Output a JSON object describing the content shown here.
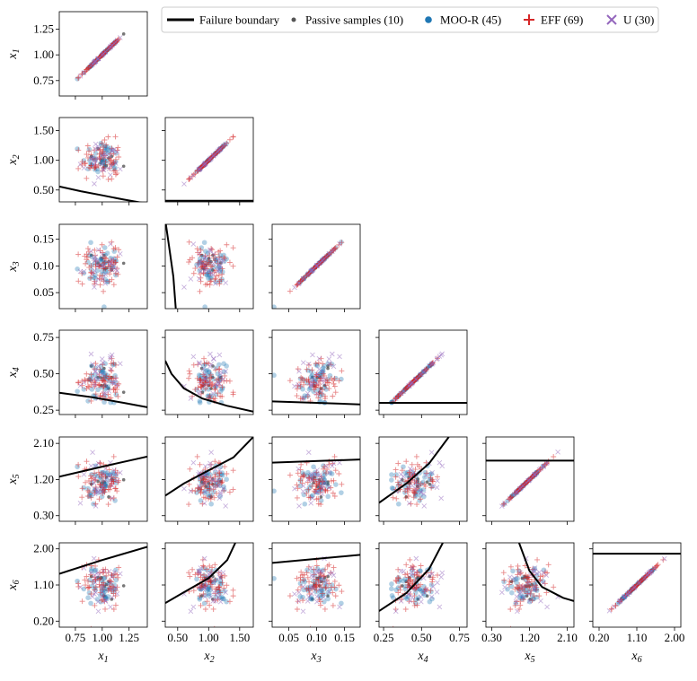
{
  "chart_data": {
    "type": "scatter",
    "layout": "pair-plot (lower triangle, diagonal = y=x)",
    "variables": [
      "x1",
      "x2",
      "x3",
      "x4",
      "x5",
      "x6"
    ],
    "axis_labels": [
      {
        "main": "x",
        "sub": "1"
      },
      {
        "main": "x",
        "sub": "2"
      },
      {
        "main": "x",
        "sub": "3"
      },
      {
        "main": "x",
        "sub": "4"
      },
      {
        "main": "x",
        "sub": "5"
      },
      {
        "main": "x",
        "sub": "6"
      }
    ],
    "ranges": [
      [
        0.6,
        1.42
      ],
      [
        0.3,
        1.72
      ],
      [
        0.02,
        0.178
      ],
      [
        0.22,
        0.8
      ],
      [
        0.16,
        2.26
      ],
      [
        0.05,
        2.15
      ]
    ],
    "x_ticks": [
      {
        "values": [
          0.75,
          1.0,
          1.25
        ],
        "labels": [
          "0.75",
          "1.00",
          "1.25"
        ]
      },
      {
        "values": [
          0.5,
          1.0,
          1.5
        ],
        "labels": [
          "0.50",
          "1.00",
          "1.50"
        ]
      },
      {
        "values": [
          0.05,
          0.1,
          0.15
        ],
        "labels": [
          "0.05",
          "0.10",
          "0.15"
        ]
      },
      {
        "values": [
          0.25,
          0.5,
          0.75
        ],
        "labels": [
          "0.25",
          "0.50",
          "0.75"
        ]
      },
      {
        "values": [
          0.3,
          1.2,
          2.1
        ],
        "labels": [
          "0.30",
          "1.20",
          "2.10"
        ]
      },
      {
        "values": [
          0.2,
          1.1,
          2.0
        ],
        "labels": [
          "0.20",
          "1.10",
          "2.00"
        ]
      }
    ],
    "y_ticks": [
      {
        "values": [
          0.75,
          1.0,
          1.25
        ],
        "labels": [
          "0.75",
          "1.00",
          "1.25"
        ]
      },
      {
        "values": [
          0.5,
          1.0,
          1.5
        ],
        "labels": [
          "0.50",
          "1.00",
          "1.50"
        ]
      },
      {
        "values": [
          0.05,
          0.1,
          0.15
        ],
        "labels": [
          "0.05",
          "0.10",
          "0.15"
        ]
      },
      {
        "values": [
          0.25,
          0.5,
          0.75
        ],
        "labels": [
          "0.25",
          "0.50",
          "0.75"
        ]
      },
      {
        "values": [
          0.3,
          1.2,
          2.1
        ],
        "labels": [
          "0.30",
          "1.20",
          "2.10"
        ]
      },
      {
        "values": [
          0.2,
          1.1,
          2.0
        ],
        "labels": [
          "0.20",
          "1.10",
          "2.00"
        ]
      }
    ],
    "centers": [
      1.0,
      1.0,
      0.1,
      0.45,
      1.15,
      1.1
    ],
    "spreads": [
      0.09,
      0.17,
      0.019,
      0.085,
      0.26,
      0.26
    ],
    "legend": [
      {
        "label": "Failure boundary",
        "marker": "line",
        "color": "#000000"
      },
      {
        "label": "Passive samples (10)",
        "marker": "dot",
        "color": "#555555"
      },
      {
        "label": "MOO-R (45)",
        "marker": "circle",
        "color": "#1f77b4"
      },
      {
        "label": "EFF (69)",
        "marker": "plus",
        "color": "#d62728"
      },
      {
        "label": "U (30)",
        "marker": "x",
        "color": "#9467bd"
      }
    ],
    "series": [
      {
        "name": "Passive samples",
        "count": 10,
        "color": "#555555",
        "marker": "dot"
      },
      {
        "name": "MOO-R",
        "count": 45,
        "color": "#1f77b4",
        "marker": "circle"
      },
      {
        "name": "EFF",
        "count": 69,
        "color": "#d62728",
        "marker": "plus"
      },
      {
        "name": "U",
        "count": 30,
        "color": "#9467bd",
        "marker": "x"
      }
    ],
    "failure_boundaries": [
      {
        "row": 2,
        "col": 1,
        "points": [
          [
            0.6,
            0.56
          ],
          [
            0.8,
            0.48
          ],
          [
            1.0,
            0.41
          ],
          [
            1.2,
            0.34
          ],
          [
            1.42,
            0.27
          ]
        ]
      },
      {
        "row": 2,
        "col": 2,
        "points": [
          [
            0.3,
            0.32
          ],
          [
            1.72,
            0.32
          ]
        ]
      },
      {
        "row": 3,
        "col": 2,
        "points": [
          [
            0.31,
            0.178
          ],
          [
            0.37,
            0.13
          ],
          [
            0.43,
            0.08
          ],
          [
            0.47,
            0.02
          ]
        ]
      },
      {
        "row": 4,
        "col": 1,
        "points": [
          [
            0.6,
            0.37
          ],
          [
            0.9,
            0.34
          ],
          [
            1.2,
            0.3
          ],
          [
            1.42,
            0.27
          ]
        ]
      },
      {
        "row": 4,
        "col": 2,
        "points": [
          [
            0.3,
            0.59
          ],
          [
            0.4,
            0.5
          ],
          [
            0.6,
            0.4
          ],
          [
            0.9,
            0.33
          ],
          [
            1.3,
            0.28
          ],
          [
            1.72,
            0.24
          ]
        ]
      },
      {
        "row": 4,
        "col": 3,
        "points": [
          [
            0.02,
            0.31
          ],
          [
            0.1,
            0.3
          ],
          [
            0.178,
            0.29
          ]
        ]
      },
      {
        "row": 4,
        "col": 4,
        "points": [
          [
            0.22,
            0.3
          ],
          [
            0.8,
            0.3
          ]
        ]
      },
      {
        "row": 5,
        "col": 1,
        "points": [
          [
            0.6,
            1.27
          ],
          [
            1.0,
            1.52
          ],
          [
            1.42,
            1.77
          ]
        ]
      },
      {
        "row": 5,
        "col": 2,
        "points": [
          [
            0.3,
            0.8
          ],
          [
            0.6,
            1.1
          ],
          [
            1.0,
            1.43
          ],
          [
            1.4,
            1.75
          ],
          [
            1.72,
            2.26
          ]
        ]
      },
      {
        "row": 5,
        "col": 3,
        "points": [
          [
            0.02,
            1.62
          ],
          [
            0.178,
            1.7
          ]
        ]
      },
      {
        "row": 5,
        "col": 4,
        "points": [
          [
            0.22,
            0.62
          ],
          [
            0.4,
            1.1
          ],
          [
            0.55,
            1.6
          ],
          [
            0.68,
            2.26
          ]
        ]
      },
      {
        "row": 5,
        "col": 5,
        "points": [
          [
            0.16,
            1.67
          ],
          [
            2.26,
            1.67
          ]
        ]
      },
      {
        "row": 6,
        "col": 1,
        "points": [
          [
            0.6,
            1.38
          ],
          [
            1.0,
            1.72
          ],
          [
            1.42,
            2.05
          ]
        ]
      },
      {
        "row": 6,
        "col": 2,
        "points": [
          [
            0.3,
            0.65
          ],
          [
            0.6,
            0.92
          ],
          [
            1.0,
            1.27
          ],
          [
            1.3,
            1.72
          ],
          [
            1.43,
            2.15
          ]
        ]
      },
      {
        "row": 6,
        "col": 3,
        "points": [
          [
            0.02,
            1.65
          ],
          [
            0.178,
            1.85
          ]
        ]
      },
      {
        "row": 6,
        "col": 4,
        "points": [
          [
            0.22,
            0.45
          ],
          [
            0.4,
            0.9
          ],
          [
            0.55,
            1.5
          ],
          [
            0.64,
            2.15
          ]
        ]
      },
      {
        "row": 6,
        "col": 5,
        "points": [
          [
            0.95,
            2.15
          ],
          [
            1.2,
            1.45
          ],
          [
            1.5,
            1.05
          ],
          [
            2.0,
            0.78
          ],
          [
            2.26,
            0.7
          ]
        ]
      },
      {
        "row": 6,
        "col": 6,
        "points": [
          [
            0.05,
            1.88
          ],
          [
            2.15,
            1.88
          ]
        ]
      }
    ]
  }
}
